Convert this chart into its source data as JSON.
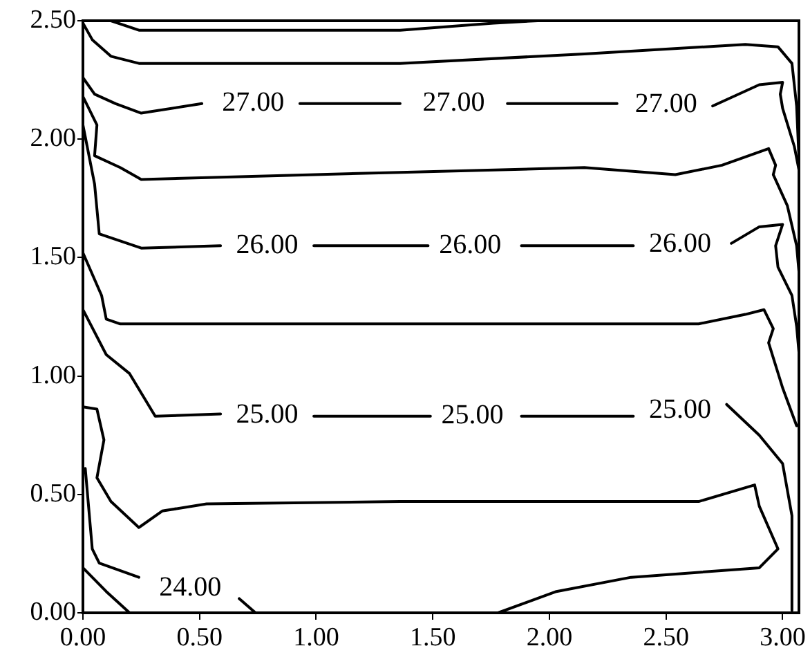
{
  "chart_data": {
    "type": "line",
    "xlim": [
      0,
      3.07
    ],
    "ylim": [
      0,
      2.5
    ],
    "xticks": [
      {
        "value": 0,
        "label": "0.00"
      },
      {
        "value": 0.5,
        "label": "0.50"
      },
      {
        "value": 1,
        "label": "1.00"
      },
      {
        "value": 1.5,
        "label": "1.50"
      },
      {
        "value": 2,
        "label": "2.00"
      },
      {
        "value": 2.5,
        "label": "2.50"
      },
      {
        "value": 3,
        "label": "3.00"
      }
    ],
    "yticks": [
      {
        "value": 0,
        "label": "0.00"
      },
      {
        "value": 0.5,
        "label": "0.50"
      },
      {
        "value": 1,
        "label": "1.00"
      },
      {
        "value": 1.5,
        "label": "1.50"
      },
      {
        "value": 2,
        "label": "2.00"
      },
      {
        "value": 2.5,
        "label": "2.50"
      }
    ],
    "grid": false,
    "legend": false,
    "marker": "none",
    "line_style": "solid",
    "series": [
      {
        "color": "#000000",
        "x": [
          0.12,
          0.24,
          0.83,
          1.36,
          1.76,
          1.95
        ],
        "values": [
          2.5,
          2.46,
          2.46,
          2.46,
          2.49,
          2.5
        ]
      },
      {
        "color": "#000000",
        "x": [
          0,
          0.04,
          0.12,
          0.24,
          1.36,
          2.15,
          2.84,
          2.98,
          3.04,
          3.06,
          3.07
        ],
        "values": [
          2.49,
          2.42,
          2.35,
          2.32,
          2.32,
          2.36,
          2.4,
          2.39,
          2.32,
          2.14,
          1.92
        ]
      },
      {
        "name": "27.00",
        "color": "#000000",
        "x": [
          0,
          0.05,
          0.14,
          0.25,
          0.51,
          0.73,
          0.93,
          1.36,
          1.59,
          1.82,
          2.29,
          2.5,
          2.7,
          2.9,
          3.0,
          2.99,
          3.0,
          3.05,
          3.07
        ],
        "values": [
          2.26,
          2.19,
          2.15,
          2.11,
          2.15,
          null,
          2.15,
          2.15,
          null,
          2.15,
          2.15,
          null,
          2.14,
          2.23,
          2.24,
          2.19,
          2.13,
          1.97,
          1.87
        ]
      },
      {
        "color": "#000000",
        "x": [
          0,
          0.06,
          0.05,
          0.16,
          0.25,
          1.36,
          2.15,
          2.54,
          2.74,
          2.94,
          2.97,
          2.96,
          3.02,
          3.06,
          3.07
        ],
        "values": [
          2.18,
          2.06,
          1.93,
          1.88,
          1.83,
          1.86,
          1.88,
          1.85,
          1.89,
          1.96,
          1.89,
          1.85,
          1.72,
          1.55,
          1.44
        ]
      },
      {
        "name": "26.00",
        "color": "#000000",
        "x": [
          0,
          0.05,
          0.07,
          0.16,
          0.25,
          0.59,
          0.79,
          0.99,
          1.48,
          1.66,
          1.88,
          2.36,
          2.56,
          2.78,
          2.9,
          3.0,
          2.97,
          2.98,
          3.04,
          3.06,
          3.07
        ],
        "values": [
          2.06,
          1.81,
          1.6,
          1.57,
          1.54,
          1.55,
          null,
          1.55,
          1.55,
          null,
          1.55,
          1.55,
          null,
          1.56,
          1.63,
          1.64,
          1.55,
          1.46,
          1.34,
          1.21,
          1.1
        ]
      },
      {
        "color": "#000000",
        "x": [
          0,
          0.08,
          0.1,
          0.16,
          1.36,
          1.95,
          2.64,
          2.84,
          2.92,
          2.96,
          2.94,
          3.0,
          3.06
        ],
        "values": [
          1.52,
          1.34,
          1.24,
          1.22,
          1.22,
          1.22,
          1.22,
          1.26,
          1.28,
          1.2,
          1.14,
          0.95,
          0.79
        ]
      },
      {
        "name": "25.00",
        "color": "#000000",
        "x": [
          0,
          0.1,
          0.2,
          0.31,
          0.59,
          0.79,
          0.99,
          1.49,
          1.67,
          1.88,
          2.36,
          2.56,
          2.76,
          2.9,
          3.0,
          3.04,
          3.04
        ],
        "values": [
          1.28,
          1.09,
          1.01,
          0.83,
          0.84,
          null,
          0.83,
          0.83,
          null,
          0.83,
          0.83,
          null,
          0.88,
          0.75,
          0.63,
          0.41,
          0.01
        ]
      },
      {
        "color": "#000000",
        "x": [
          0,
          0.06,
          0.09,
          0.06,
          0.12,
          0.24,
          0.34,
          0.53,
          1.36,
          2.15,
          2.64,
          2.88,
          2.9,
          2.98,
          2.9,
          2.35,
          2.03,
          1.78
        ],
        "values": [
          0.87,
          0.86,
          0.73,
          0.57,
          0.47,
          0.36,
          0.43,
          0.46,
          0.47,
          0.47,
          0.47,
          0.54,
          0.45,
          0.27,
          0.19,
          0.15,
          0.09,
          0
        ]
      },
      {
        "name": "24.00",
        "color": "#000000",
        "x": [
          0.01,
          0.04,
          0.07,
          0.24,
          0.46,
          0.67,
          0.74
        ],
        "values": [
          0.61,
          0.27,
          0.21,
          0.15,
          null,
          0.06,
          0
        ]
      },
      {
        "color": "#000000",
        "x": [
          0,
          0.1,
          0.2
        ],
        "values": [
          0.19,
          0.09,
          0
        ]
      }
    ]
  }
}
